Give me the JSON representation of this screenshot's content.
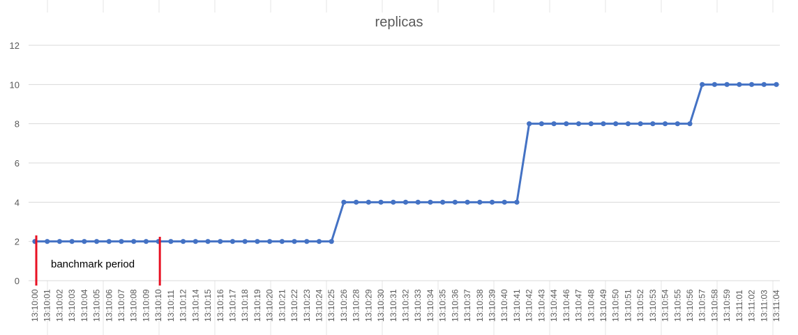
{
  "chart_data": {
    "type": "line",
    "title": "replicas",
    "xlabel": "",
    "ylabel": "",
    "ylim": [
      0,
      12
    ],
    "yticks": [
      0,
      2,
      4,
      6,
      8,
      10,
      12
    ],
    "grid": true,
    "legend": "none",
    "x": [
      "13:10:00",
      "13:10:01",
      "13:10:02",
      "13:10:03",
      "13:10:04",
      "13:10:05",
      "13:10:06",
      "13:10:07",
      "13:10:08",
      "13:10:09",
      "13:10:10",
      "13:10:11",
      "13:10:12",
      "13:10:14",
      "13:10:15",
      "13:10:16",
      "13:10:17",
      "13:10:18",
      "13:10:19",
      "13:10:20",
      "13:10:21",
      "13:10:22",
      "13:10:23",
      "13:10:24",
      "13:10:25",
      "13:10:26",
      "13:10:28",
      "13:10:29",
      "13:10:30",
      "13:10:31",
      "13:10:32",
      "13:10:33",
      "13:10:34",
      "13:10:35",
      "13:10:36",
      "13:10:37",
      "13:10:38",
      "13:10:39",
      "13:10:40",
      "13:10:41",
      "13:10:42",
      "13:10:43",
      "13:10:44",
      "13:10:46",
      "13:10:47",
      "13:10:48",
      "13:10:49",
      "13:10:50",
      "13:10:51",
      "13:10:52",
      "13:10:53",
      "13:10:54",
      "13:10:55",
      "13:10:56",
      "13:10:57",
      "13:10:58",
      "13:10:59",
      "13:11:01",
      "13:11:02",
      "13:11:03",
      "13:11:04"
    ],
    "series": [
      {
        "values": [
          2,
          2,
          2,
          2,
          2,
          2,
          2,
          2,
          2,
          2,
          2,
          2,
          2,
          2,
          2,
          2,
          2,
          2,
          2,
          2,
          2,
          2,
          2,
          2,
          2,
          4,
          4,
          4,
          4,
          4,
          4,
          4,
          4,
          4,
          4,
          4,
          4,
          4,
          4,
          4,
          8,
          8,
          8,
          8,
          8,
          8,
          8,
          8,
          8,
          8,
          8,
          8,
          8,
          8,
          10,
          10,
          10,
          10,
          10,
          10,
          10
        ],
        "color": "#4472c4"
      }
    ],
    "annotations": [
      {
        "text": "banchmark period",
        "start": "13:10:00",
        "end": "13:10:10",
        "color": "#e81123"
      }
    ]
  }
}
